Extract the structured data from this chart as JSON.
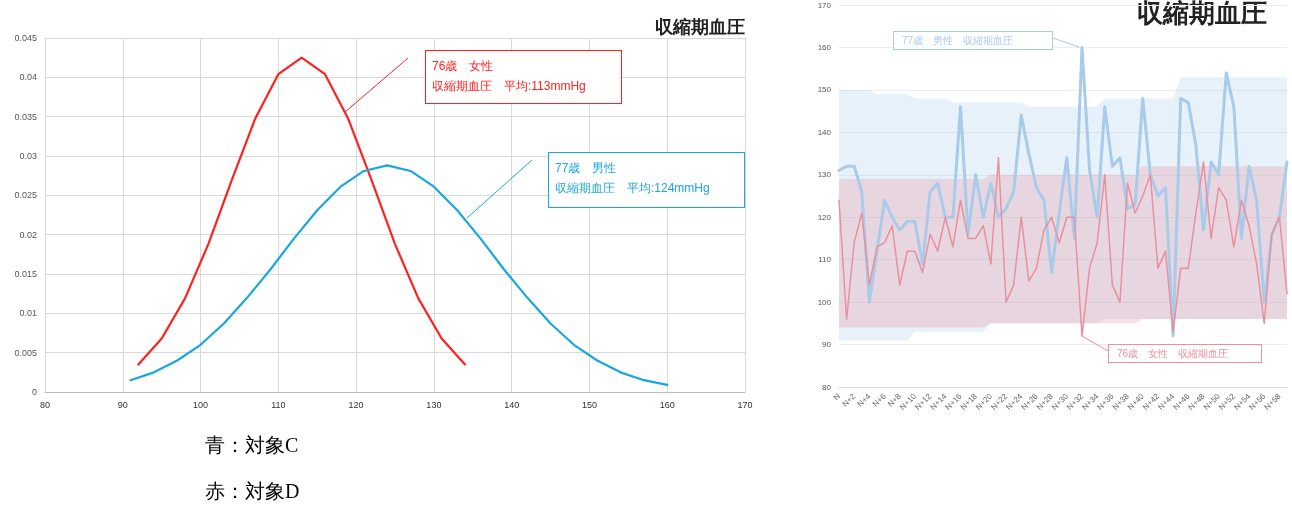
{
  "chart_data": [
    {
      "type": "line",
      "title": "収縮期血圧",
      "xlim": [
        80,
        170
      ],
      "xticks": [
        80,
        90,
        100,
        110,
        120,
        130,
        140,
        150,
        160,
        170
      ],
      "ylim": [
        0,
        0.045
      ],
      "yticks": [
        0,
        0.005,
        0.01,
        0.015,
        0.02,
        0.025,
        0.03,
        0.035,
        0.04,
        0.045
      ],
      "grid": true,
      "marker": "none",
      "line_style": "solid",
      "series": [
        {
          "color": "#ff2020",
          "x": [
            92,
            95,
            98,
            101,
            104,
            107,
            110,
            113,
            116,
            119,
            122,
            125,
            128,
            131,
            134
          ],
          "values": [
            0.0035,
            0.0068,
            0.0119,
            0.0188,
            0.0269,
            0.0347,
            0.0404,
            0.0425,
            0.0404,
            0.0347,
            0.0269,
            0.0188,
            0.0119,
            0.0068,
            0.0035
          ]
        },
        {
          "color": "#1aa7dc",
          "x": [
            91,
            94,
            97,
            100,
            103,
            106,
            109,
            112,
            115,
            118,
            121,
            124,
            127,
            130,
            133,
            136,
            139,
            142,
            145,
            148,
            151,
            154,
            157,
            160
          ],
          "values": [
            0.0015,
            0.0025,
            0.004,
            0.006,
            0.0087,
            0.012,
            0.0156,
            0.0195,
            0.0231,
            0.0261,
            0.0281,
            0.0288,
            0.0281,
            0.0261,
            0.0231,
            0.0195,
            0.0156,
            0.012,
            0.0087,
            0.006,
            0.004,
            0.0025,
            0.0015,
            0.0009
          ]
        }
      ],
      "annotations": [
        "76歳　女性",
        "収縮期血圧　平均:113mmHg",
        "77歳　男性",
        "収縮期血圧　平均:124mmHg",
        "青：対象C",
        "赤：対象D"
      ]
    },
    {
      "type": "line",
      "title": "収縮期血圧",
      "ylim": [
        80,
        170
      ],
      "yticks": [
        80,
        90,
        100,
        110,
        120,
        130,
        140,
        150,
        160,
        170
      ],
      "grid": "y",
      "marker": "none",
      "line_style": "solid",
      "categories": [
        "N",
        null,
        "N+2",
        null,
        "N+4",
        null,
        "N+6",
        null,
        "N+8",
        null,
        "N+10",
        null,
        "N+12",
        null,
        "N+14",
        null,
        "N+16",
        null,
        "N+18",
        null,
        "N+20",
        null,
        "N+22",
        null,
        "N+24",
        null,
        "N+26",
        null,
        "N+28",
        null,
        "N+30",
        null,
        "N+32",
        null,
        "N+34",
        null,
        "N+36",
        null,
        "N+38",
        null,
        "N+40",
        null,
        "N+42",
        null,
        "N+44",
        null,
        "N+46",
        null,
        "N+48",
        null,
        "N+50",
        null,
        "N+52",
        null,
        "N+54",
        null,
        "N+56",
        null,
        "N+58",
        null
      ],
      "series": [
        {
          "color": "#a9cbea",
          "values": [
            131,
            132,
            132,
            126,
            100,
            112,
            124,
            120,
            117,
            119,
            119,
            109,
            126,
            128,
            120,
            120,
            146,
            116,
            130,
            120,
            128,
            120,
            122,
            126,
            144,
            135,
            127,
            124,
            107,
            121,
            134,
            115,
            160,
            131,
            120,
            146,
            132,
            134,
            122,
            123,
            148,
            130,
            125,
            127,
            92,
            148,
            147,
            137,
            117,
            133,
            130,
            154,
            146,
            115,
            132,
            124,
            100,
            116,
            120,
            133
          ],
          "lower": [
            91,
            91,
            91,
            91,
            91,
            91,
            91,
            91,
            91,
            91,
            93,
            93,
            93,
            93,
            93,
            93,
            93,
            93,
            93,
            93,
            95,
            95,
            95,
            95,
            95,
            95,
            95,
            95,
            95,
            95,
            95,
            95,
            95,
            95,
            95,
            96,
            96,
            96,
            96,
            96,
            96,
            96,
            96,
            96,
            96,
            96,
            96,
            96,
            96,
            96,
            96,
            96,
            96,
            96,
            96,
            96,
            96,
            96,
            96,
            96
          ],
          "upper": [
            150,
            150,
            150,
            150,
            150,
            149,
            149,
            149,
            149,
            149,
            148,
            148,
            148,
            148,
            148,
            147,
            147,
            147,
            147,
            147,
            147,
            147,
            147,
            147,
            147,
            146,
            146,
            146,
            146,
            146,
            146,
            146,
            146,
            146,
            146,
            148,
            148,
            148,
            148,
            148,
            148,
            148,
            148,
            148,
            148,
            153,
            153,
            153,
            153,
            153,
            153,
            153,
            153,
            153,
            153,
            153,
            153,
            153,
            153,
            153
          ]
        },
        {
          "color": "#e8909e",
          "values": [
            124,
            96,
            114,
            121,
            104,
            113,
            114,
            118,
            104,
            112,
            112,
            107,
            116,
            112,
            120,
            113,
            124,
            115,
            115,
            118,
            109,
            134,
            100,
            104,
            120,
            105,
            108,
            117,
            120,
            114,
            120,
            120,
            92,
            108,
            114,
            130,
            104,
            100,
            128,
            121,
            125,
            130,
            108,
            112,
            93,
            108,
            108,
            121,
            133,
            115,
            127,
            124,
            113,
            124,
            118,
            109,
            95,
            116,
            120,
            102
          ],
          "lower": [
            94,
            94,
            94,
            94,
            94,
            94,
            94,
            94,
            94,
            94,
            94,
            94,
            94,
            94,
            94,
            94,
            94,
            94,
            94,
            94,
            95,
            95,
            95,
            95,
            95,
            95,
            95,
            95,
            95,
            95,
            95,
            95,
            95,
            95,
            95,
            95,
            95,
            95,
            95,
            95,
            96,
            96,
            96,
            96,
            96,
            96,
            96,
            96,
            96,
            96,
            96,
            96,
            96,
            96,
            96,
            96,
            96,
            96,
            96,
            96
          ],
          "upper": [
            129,
            129,
            129,
            129,
            129,
            129,
            129,
            129,
            129,
            129,
            129,
            129,
            129,
            129,
            129,
            129,
            129,
            129,
            129,
            129,
            130,
            130,
            130,
            130,
            130,
            130,
            130,
            130,
            130,
            130,
            130,
            130,
            130,
            130,
            130,
            130,
            130,
            130,
            130,
            130,
            132,
            132,
            132,
            132,
            132,
            132,
            132,
            132,
            132,
            132,
            132,
            132,
            132,
            132,
            132,
            132,
            132,
            132,
            132,
            132
          ]
        }
      ],
      "annotations": [
        "77歳　男性　収縮期血圧",
        {
          "text": "76歳　女性　収縮期血圧",
          "x": "N+32",
          "y": 92
        }
      ]
    }
  ]
}
